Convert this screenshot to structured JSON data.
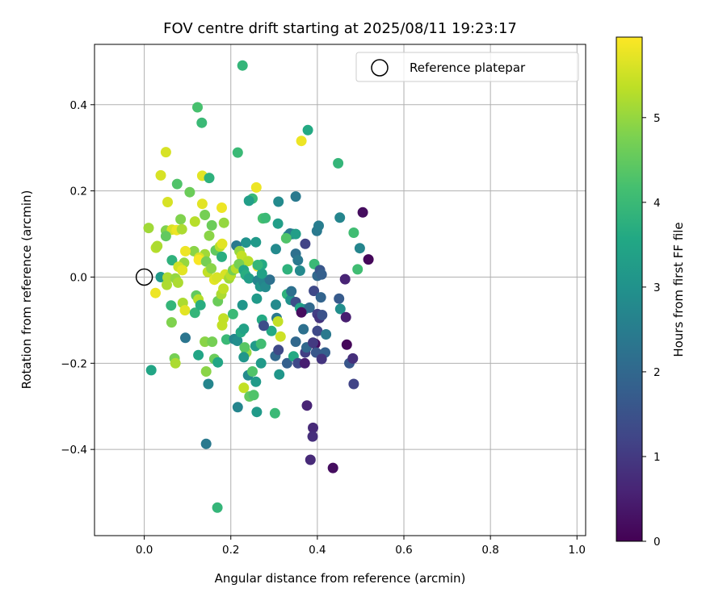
{
  "chart_data": {
    "type": "scatter",
    "title": "FOV centre drift starting at 2025/08/11 19:23:17",
    "xlabel": "Angular distance from reference (arcmin)",
    "ylabel": "Rotation from reference (arcmin)",
    "xlim": [
      -0.115,
      1.02
    ],
    "ylim": [
      -0.6,
      0.54
    ],
    "x_ticks": [
      0.0,
      0.2,
      0.4,
      0.6,
      0.8,
      1.0
    ],
    "x_tick_labels": [
      "0.0",
      "0.2",
      "0.4",
      "0.6",
      "0.8",
      "1.0"
    ],
    "y_ticks": [
      -0.4,
      -0.2,
      0.0,
      0.2,
      0.4
    ],
    "y_tick_labels": [
      "−0.4",
      "−0.2",
      "0.0",
      "0.2",
      "0.4"
    ],
    "grid": true,
    "legend": {
      "position": "top-right",
      "entries": [
        "Reference platepar"
      ]
    },
    "reference_point": {
      "x": 0.0,
      "y": 0.0,
      "marker": "open-circle"
    },
    "colorbar": {
      "label": "Hours from first FF file",
      "colormap": "viridis",
      "range": [
        0,
        5.95
      ],
      "ticks": [
        0,
        1,
        2,
        3,
        4,
        5
      ],
      "tick_labels": [
        "0",
        "1",
        "2",
        "3",
        "4",
        "5"
      ]
    },
    "points": [
      [
        0.227,
        0.491,
        3.9
      ],
      [
        0.123,
        0.394,
        4.2
      ],
      [
        0.133,
        0.358,
        4.0
      ],
      [
        0.378,
        0.341,
        3.6
      ],
      [
        0.363,
        0.316,
        5.8
      ],
      [
        0.05,
        0.29,
        5.6
      ],
      [
        0.216,
        0.289,
        4.0
      ],
      [
        0.448,
        0.264,
        3.9
      ],
      [
        0.038,
        0.236,
        5.6
      ],
      [
        0.134,
        0.235,
        5.7
      ],
      [
        0.15,
        0.23,
        3.8
      ],
      [
        0.076,
        0.216,
        4.3
      ],
      [
        0.105,
        0.197,
        4.6
      ],
      [
        0.259,
        0.208,
        5.8
      ],
      [
        0.25,
        0.182,
        4.0
      ],
      [
        0.242,
        0.177,
        3.3
      ],
      [
        0.31,
        0.175,
        2.8
      ],
      [
        0.35,
        0.187,
        2.4
      ],
      [
        0.134,
        0.17,
        5.7
      ],
      [
        0.054,
        0.174,
        5.6
      ],
      [
        0.179,
        0.161,
        5.8
      ],
      [
        0.14,
        0.144,
        4.7
      ],
      [
        0.084,
        0.134,
        4.8
      ],
      [
        0.184,
        0.126,
        5.0
      ],
      [
        0.274,
        0.136,
        4.2
      ],
      [
        0.28,
        0.137,
        4.0
      ],
      [
        0.309,
        0.124,
        3.3
      ],
      [
        0.399,
        0.107,
        2.4
      ],
      [
        0.403,
        0.119,
        2.5
      ],
      [
        0.452,
        0.138,
        2.7
      ],
      [
        0.505,
        0.15,
        0.2
      ],
      [
        0.01,
        0.114,
        5.1
      ],
      [
        0.05,
        0.108,
        4.8
      ],
      [
        0.064,
        0.11,
        5.6
      ],
      [
        0.075,
        0.109,
        5.8
      ],
      [
        0.087,
        0.111,
        5.2
      ],
      [
        0.15,
        0.096,
        4.9
      ],
      [
        0.117,
        0.129,
        5.3
      ],
      [
        0.156,
        0.12,
        4.6
      ],
      [
        0.332,
        0.096,
        3.0
      ],
      [
        0.343,
        0.1,
        2.6
      ],
      [
        0.337,
        0.101,
        2.4
      ],
      [
        0.35,
        0.1,
        3.3
      ],
      [
        0.05,
        0.095,
        4.5
      ],
      [
        0.027,
        0.068,
        5.3
      ],
      [
        0.03,
        0.072,
        5.2
      ],
      [
        0.115,
        0.06,
        4.9
      ],
      [
        0.14,
        0.053,
        5.1
      ],
      [
        0.235,
        0.08,
        3.0
      ],
      [
        0.213,
        0.073,
        2.4
      ],
      [
        0.258,
        0.081,
        3.2
      ],
      [
        0.328,
        0.09,
        4.3
      ],
      [
        0.372,
        0.077,
        1.2
      ],
      [
        0.484,
        0.103,
        4.1
      ],
      [
        0.498,
        0.067,
        2.7
      ],
      [
        0.518,
        0.041,
        0.1
      ],
      [
        0.095,
        0.06,
        5.8
      ],
      [
        0.064,
        0.039,
        3.8
      ],
      [
        0.092,
        0.033,
        5.0
      ],
      [
        0.127,
        0.045,
        5.6
      ],
      [
        0.126,
        0.04,
        5.9
      ],
      [
        0.143,
        0.036,
        4.7
      ],
      [
        0.165,
        0.062,
        4.5
      ],
      [
        0.179,
        0.047,
        3.7
      ],
      [
        0.175,
        0.071,
        5.3
      ],
      [
        0.18,
        0.077,
        5.7
      ],
      [
        0.22,
        0.06,
        5.0
      ],
      [
        0.225,
        0.049,
        5.4
      ],
      [
        0.24,
        0.037,
        5.3
      ],
      [
        0.262,
        0.025,
        5.9
      ],
      [
        0.272,
        0.029,
        3.6
      ],
      [
        0.304,
        0.065,
        2.8
      ],
      [
        0.331,
        0.018,
        3.8
      ],
      [
        0.35,
        0.054,
        2.2
      ],
      [
        0.355,
        0.039,
        2.4
      ],
      [
        0.36,
        0.015,
        2.8
      ],
      [
        0.393,
        0.03,
        4.0
      ],
      [
        0.4,
        0.003,
        2.0
      ],
      [
        0.406,
        0.016,
        1.6
      ],
      [
        0.41,
        0.006,
        1.8
      ],
      [
        0.493,
        0.018,
        4.1
      ],
      [
        0.464,
        -0.005,
        0.6
      ],
      [
        0.038,
        0.0,
        3.2
      ],
      [
        0.054,
        -0.001,
        5.2
      ],
      [
        0.052,
        -0.018,
        5.2
      ],
      [
        0.072,
        -0.003,
        5.0
      ],
      [
        0.078,
        -0.013,
        5.2
      ],
      [
        0.079,
        0.024,
        5.5
      ],
      [
        0.088,
        0.016,
        5.7
      ],
      [
        0.147,
        0.012,
        5.4
      ],
      [
        0.155,
        0.02,
        4.9
      ],
      [
        0.162,
        -0.006,
        5.7
      ],
      [
        0.168,
        -0.001,
        5.6
      ],
      [
        0.187,
        0.006,
        5.6
      ],
      [
        0.196,
        -0.003,
        5.1
      ],
      [
        0.2,
        0.004,
        5.3
      ],
      [
        0.205,
        0.016,
        4.7
      ],
      [
        0.212,
        0.02,
        5.3
      ],
      [
        0.219,
        0.03,
        4.7
      ],
      [
        0.23,
        0.016,
        3.5
      ],
      [
        0.234,
        0.005,
        3.7
      ],
      [
        0.242,
        -0.003,
        3.3
      ],
      [
        0.262,
        -0.008,
        2.7
      ],
      [
        0.268,
        -0.022,
        3.1
      ],
      [
        0.276,
        -0.012,
        2.7
      ],
      [
        0.28,
        -0.023,
        2.8
      ],
      [
        0.29,
        -0.006,
        2.2
      ],
      [
        0.272,
        0.008,
        3.4
      ],
      [
        0.262,
        0.028,
        3.9
      ],
      [
        0.026,
        -0.037,
        5.8
      ],
      [
        0.062,
        -0.066,
        3.9
      ],
      [
        0.063,
        -0.105,
        4.8
      ],
      [
        0.089,
        -0.06,
        5.2
      ],
      [
        0.094,
        -0.077,
        5.7
      ],
      [
        0.117,
        -0.083,
        3.9
      ],
      [
        0.12,
        -0.043,
        4.5
      ],
      [
        0.125,
        -0.052,
        5.3
      ],
      [
        0.13,
        -0.065,
        3.7
      ],
      [
        0.17,
        -0.056,
        4.6
      ],
      [
        0.178,
        -0.04,
        5.2
      ],
      [
        0.183,
        -0.027,
        5.4
      ],
      [
        0.205,
        -0.086,
        4.0
      ],
      [
        0.227,
        -0.065,
        3.1
      ],
      [
        0.26,
        -0.05,
        3.2
      ],
      [
        0.304,
        -0.064,
        2.8
      ],
      [
        0.33,
        -0.04,
        3.8
      ],
      [
        0.338,
        -0.053,
        3.0
      ],
      [
        0.34,
        -0.033,
        2.2
      ],
      [
        0.35,
        -0.058,
        1.4
      ],
      [
        0.36,
        -0.072,
        3.5
      ],
      [
        0.37,
        -0.075,
        3.0
      ],
      [
        0.382,
        -0.071,
        2.0
      ],
      [
        0.392,
        -0.032,
        1.3
      ],
      [
        0.4,
        -0.086,
        1.1
      ],
      [
        0.408,
        -0.047,
        1.9
      ],
      [
        0.405,
        -0.095,
        0.9
      ],
      [
        0.411,
        -0.088,
        1.5
      ],
      [
        0.45,
        -0.05,
        1.7
      ],
      [
        0.453,
        -0.074,
        2.9
      ],
      [
        0.466,
        -0.093,
        0.5
      ],
      [
        0.306,
        -0.095,
        2.4
      ],
      [
        0.309,
        -0.103,
        5.4
      ],
      [
        0.294,
        -0.125,
        3.6
      ],
      [
        0.272,
        -0.099,
        3.6
      ],
      [
        0.276,
        -0.113,
        1.4
      ],
      [
        0.363,
        -0.082,
        0.2
      ],
      [
        0.368,
        -0.121,
        2.2
      ],
      [
        0.372,
        -0.175,
        1.1
      ],
      [
        0.375,
        -0.163,
        2.0
      ],
      [
        0.395,
        -0.155,
        0.2
      ],
      [
        0.397,
        -0.175,
        1.6
      ],
      [
        0.4,
        -0.125,
        1.3
      ],
      [
        0.42,
        -0.133,
        2.4
      ],
      [
        0.418,
        -0.175,
        1.8
      ],
      [
        0.41,
        -0.19,
        0.9
      ],
      [
        0.468,
        -0.157,
        0.1
      ],
      [
        0.474,
        -0.2,
        1.6
      ],
      [
        0.482,
        -0.189,
        0.8
      ],
      [
        0.484,
        -0.248,
        1.2
      ],
      [
        0.095,
        -0.141,
        2.3
      ],
      [
        0.07,
        -0.189,
        4.7
      ],
      [
        0.072,
        -0.2,
        5.2
      ],
      [
        0.125,
        -0.181,
        3.5
      ],
      [
        0.14,
        -0.15,
        4.9
      ],
      [
        0.157,
        -0.15,
        4.7
      ],
      [
        0.162,
        -0.19,
        4.6
      ],
      [
        0.17,
        -0.198,
        3.5
      ],
      [
        0.18,
        -0.112,
        5.4
      ],
      [
        0.183,
        -0.096,
        5.4
      ],
      [
        0.19,
        -0.145,
        4.0
      ],
      [
        0.208,
        -0.144,
        2.7
      ],
      [
        0.215,
        -0.148,
        2.9
      ],
      [
        0.223,
        -0.128,
        3.6
      ],
      [
        0.23,
        -0.12,
        3.4
      ],
      [
        0.236,
        -0.175,
        5.0
      ],
      [
        0.232,
        -0.163,
        4.4
      ],
      [
        0.23,
        -0.186,
        3.1
      ],
      [
        0.24,
        -0.228,
        2.8
      ],
      [
        0.25,
        -0.219,
        4.3
      ],
      [
        0.257,
        -0.16,
        3.2
      ],
      [
        0.27,
        -0.2,
        3.2
      ],
      [
        0.27,
        -0.155,
        4.1
      ],
      [
        0.303,
        -0.183,
        2.0
      ],
      [
        0.31,
        -0.169,
        1.3
      ],
      [
        0.312,
        -0.226,
        3.1
      ],
      [
        0.315,
        -0.138,
        5.5
      ],
      [
        0.33,
        -0.2,
        1.8
      ],
      [
        0.345,
        -0.184,
        3.6
      ],
      [
        0.35,
        -0.15,
        2.0
      ],
      [
        0.355,
        -0.2,
        1.3
      ],
      [
        0.371,
        -0.2,
        0.5
      ],
      [
        0.39,
        -0.152,
        1.0
      ],
      [
        0.016,
        -0.216,
        3.5
      ],
      [
        0.143,
        -0.219,
        4.9
      ],
      [
        0.148,
        -0.248,
        2.7
      ],
      [
        0.23,
        -0.257,
        5.4
      ],
      [
        0.243,
        -0.277,
        4.5
      ],
      [
        0.253,
        -0.274,
        4.3
      ],
      [
        0.258,
        -0.243,
        3.2
      ],
      [
        0.302,
        -0.316,
        4.0
      ],
      [
        0.376,
        -0.298,
        0.6
      ],
      [
        0.436,
        -0.443,
        0.2
      ],
      [
        0.384,
        -0.424,
        0.7
      ],
      [
        0.39,
        -0.35,
        0.7
      ],
      [
        0.389,
        -0.37,
        0.8
      ],
      [
        0.143,
        -0.387,
        2.4
      ],
      [
        0.216,
        -0.302,
        2.7
      ],
      [
        0.26,
        -0.313,
        3.2
      ],
      [
        0.169,
        -0.535,
        3.9
      ]
    ]
  }
}
